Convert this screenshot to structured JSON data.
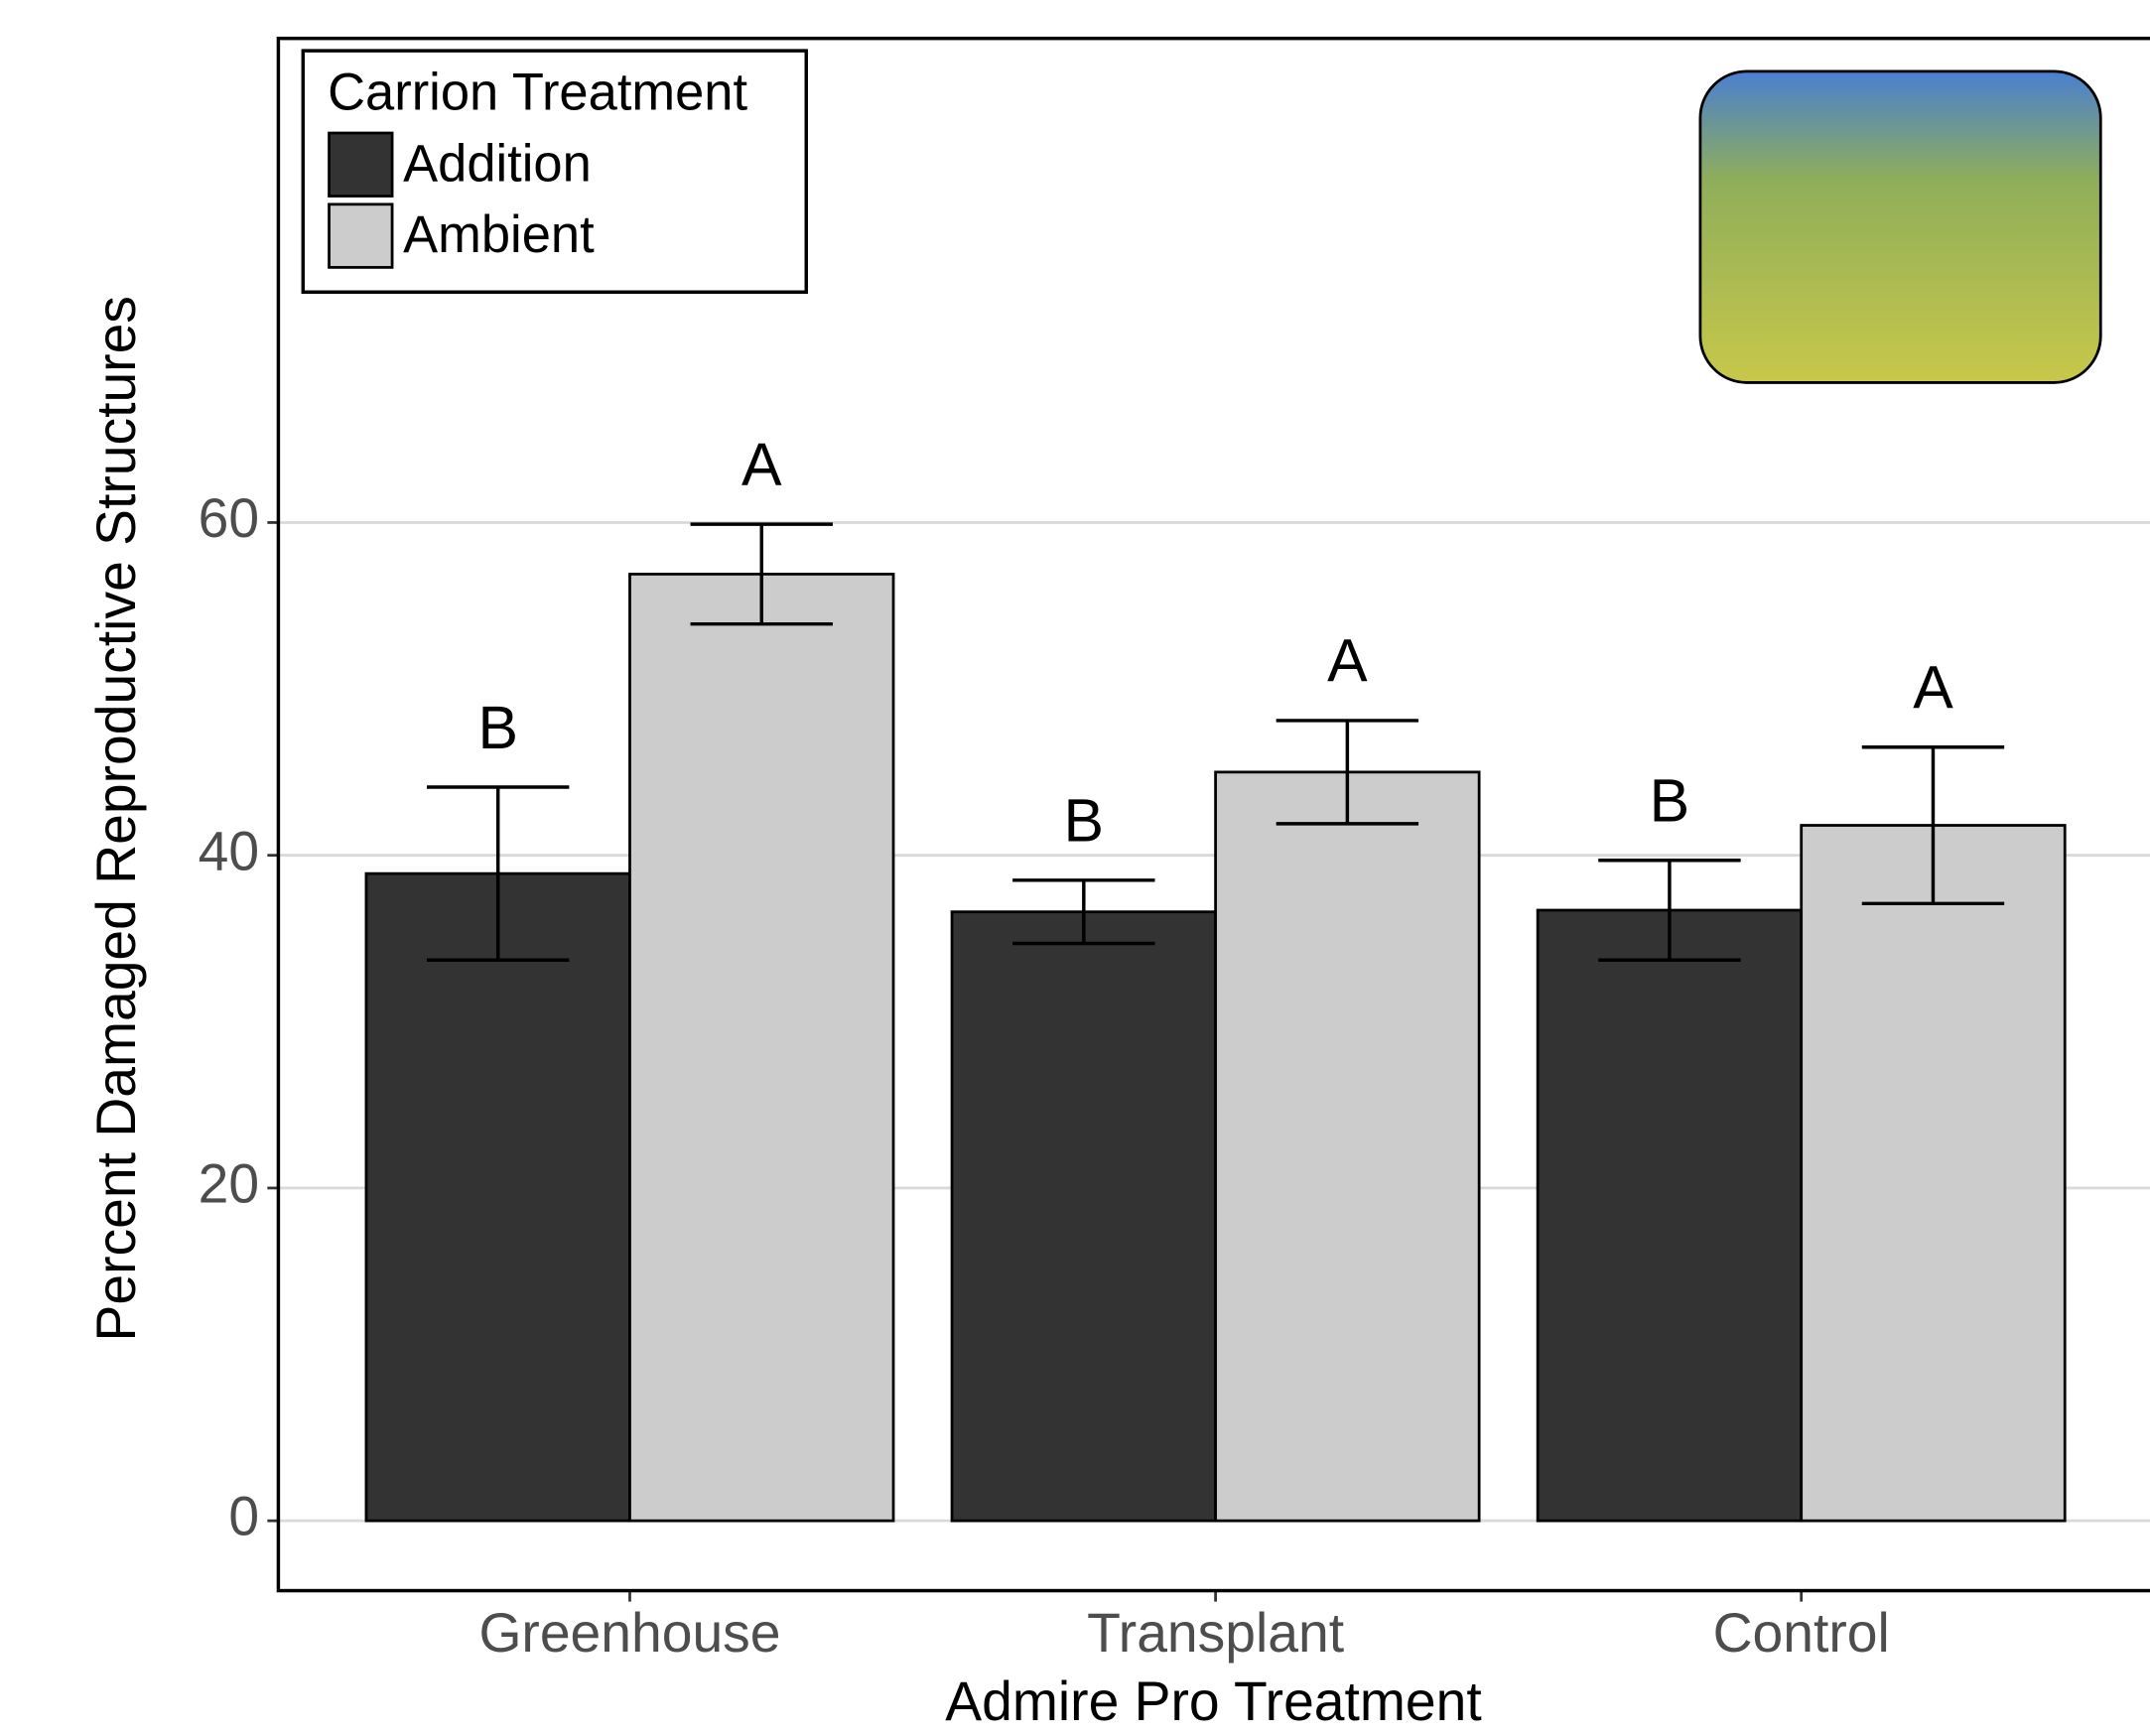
{
  "chart_data": {
    "type": "bar",
    "x_label": "Admire Pro Treatment",
    "y_label": "Percent Damaged Reproductive Structures",
    "legend_title": "Carrion Treatment",
    "legend_position": "top-left",
    "categories": [
      "Greenhouse",
      "Transplant",
      "Control"
    ],
    "series": [
      {
        "name": "Addition",
        "color": "#333333",
        "values": [
          38.9,
          36.6,
          36.7
        ],
        "errors": [
          5.2,
          1.9,
          3.0
        ],
        "significance_labels": [
          "B",
          "B",
          "B"
        ]
      },
      {
        "name": "Ambient",
        "color": "#cccccc",
        "values": [
          56.9,
          45.0,
          41.8
        ],
        "errors": [
          3.0,
          3.1,
          4.7
        ],
        "significance_labels": [
          "A",
          "A",
          "A"
        ]
      }
    ],
    "ylim": [
      -4.2,
      89.1
    ],
    "yticks": [
      0,
      20,
      40,
      60
    ],
    "grid": true
  }
}
